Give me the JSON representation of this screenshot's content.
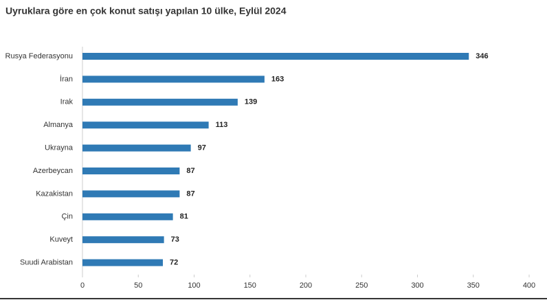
{
  "chart_data": {
    "type": "hbar",
    "title": "Uyruklara göre en çok konut satışı yapılan 10 ülke, Eylül 2024",
    "categories": [
      "Rusya Federasyonu",
      "İran",
      "Irak",
      "Almanya",
      "Ukrayna",
      "Azerbeycan",
      "Kazakistan",
      "Çin",
      "Kuveyt",
      "Suudi Arabistan"
    ],
    "values": [
      346,
      163,
      139,
      113,
      97,
      87,
      87,
      81,
      73,
      72
    ],
    "color": "#2f7ab5",
    "xlim": [
      0,
      400
    ],
    "xticks": [
      0,
      50,
      100,
      150,
      200,
      250,
      300,
      350,
      400
    ]
  }
}
